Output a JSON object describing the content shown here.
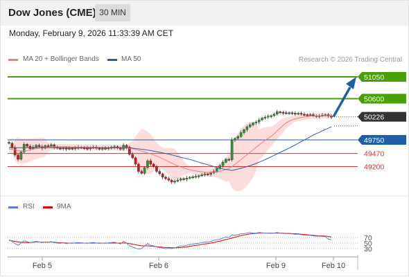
{
  "header": {
    "title": "Dow Jones (CME)",
    "timeframe": "30 MIN"
  },
  "datetime": "Monday, February 9, 2026 11:33:39 AM CET",
  "legend": {
    "ma20": "MA 20 + Bollinger Bands",
    "ma50": "MA 50",
    "rsi": "RSI",
    "ma9": "9MA"
  },
  "credit": "Research © 2026 Trading Central",
  "colors": {
    "ma20": "#f08080",
    "ma50": "#2d5fa0",
    "rsi": "#5b7fcf",
    "ma9": "#e00000",
    "target": "#4aa000",
    "pivot": "#1f5fa8",
    "support": "#d83030",
    "last": "#333333",
    "candle_up": "#2a9a2a",
    "candle_down": "#c02020",
    "band": "#fdd6d6"
  },
  "chart_data": [
    {
      "type": "candlestick",
      "title": "Dow Jones (CME)",
      "timeframe": "30 MIN",
      "x_ticks": [
        "Feb 5",
        "Feb 6",
        "Feb 9",
        "Feb 10"
      ],
      "ylim": [
        48900,
        51200
      ],
      "grid": false,
      "levels": [
        {
          "label": "51050",
          "value": 51050,
          "role": "resistance target"
        },
        {
          "label": "50600",
          "value": 50600,
          "role": "resistance target"
        },
        {
          "label": "50226",
          "value": 50226,
          "role": "last price"
        },
        {
          "label": "49750",
          "value": 49750,
          "role": "pivot"
        },
        {
          "label": "49470",
          "value": 49470,
          "role": "support"
        },
        {
          "label": "49200",
          "value": 49200,
          "role": "support"
        }
      ],
      "forecast_arrow": {
        "from": 50226,
        "to": 51050,
        "direction": "up"
      },
      "series": [
        {
          "name": "Dow Jones (CME)",
          "close": [
            49680,
            49590,
            49440,
            49350,
            49500,
            49660,
            49620,
            49570,
            49600,
            49640,
            49610,
            49580,
            49630,
            49620,
            49650,
            49600,
            49580,
            49570,
            49590,
            49560,
            49580,
            49570,
            49590,
            49600,
            49590,
            49580,
            49570,
            49590,
            49600,
            49580,
            49570,
            49580,
            49570,
            49590,
            49600,
            49610,
            49580,
            49560,
            49640,
            49600,
            49450,
            49380,
            49250,
            49100,
            49060,
            49180,
            49320,
            49250,
            49200,
            49100,
            49050,
            48980,
            48950,
            48920,
            48880,
            48900,
            48920,
            48950,
            48940,
            48960,
            48980,
            48990,
            49000,
            49010,
            49030,
            49050,
            49040,
            49070,
            49100,
            49160,
            49220,
            49290,
            49350,
            49340,
            49750,
            49780,
            49820,
            49900,
            49960,
            50020,
            50060,
            50100,
            50120,
            50160,
            50200,
            50220,
            50240,
            50250,
            50280,
            50330,
            50320,
            50310,
            50300,
            50310,
            50300,
            50290,
            50300,
            50280,
            50270,
            50260,
            50270,
            50250,
            50240,
            50250,
            50260,
            50270,
            50240,
            50226
          ]
        },
        {
          "name": "MA 20",
          "values": [
            49560,
            49552,
            49546,
            49528,
            49520,
            49520,
            49528,
            49542,
            49557,
            49570,
            49580,
            49590,
            49598,
            49600,
            49605,
            49608,
            49610,
            49610,
            49610,
            49608,
            49606,
            49604,
            49602,
            49600,
            49598,
            49596,
            49595,
            49595,
            49594,
            49593,
            49592,
            49590,
            49588,
            49588,
            49588,
            49588,
            49587,
            49586,
            49585,
            49584,
            49578,
            49566,
            49552,
            49536,
            49518,
            49500,
            49482,
            49462,
            49440,
            49416,
            49390,
            49362,
            49332,
            49300,
            49270,
            49240,
            49214,
            49190,
            49168,
            49150,
            49136,
            49122,
            49110,
            49100,
            49092,
            49086,
            49082,
            49080,
            49084,
            49092,
            49100,
            49120,
            49138,
            49160,
            49200,
            49246,
            49294,
            49344,
            49394,
            49444,
            49494,
            49544,
            49596,
            49646,
            49694,
            49740,
            49782,
            49822,
            49872,
            49936,
            49992,
            50050,
            50102,
            50136,
            50164,
            50186,
            50200,
            50212,
            50223,
            50232,
            50238,
            50242,
            50244,
            50246,
            50248,
            50248,
            50248,
            50248
          ]
        },
        {
          "name": "MA 50",
          "values": [
            49590,
            49590,
            49590,
            49590,
            49590,
            49590,
            49590,
            49590,
            49590,
            49590,
            49590,
            49590,
            49590,
            49590,
            49590,
            49590,
            49590,
            49590,
            49590,
            49590,
            49590,
            49590,
            49590,
            49590,
            49590,
            49590,
            49590,
            49590,
            49590,
            49590,
            49590,
            49590,
            49590,
            49590,
            49590,
            49590,
            49590,
            49590,
            49590,
            49590,
            49588,
            49580,
            49572,
            49564,
            49556,
            49548,
            49540,
            49530,
            49518,
            49506,
            49494,
            49482,
            49470,
            49456,
            49440,
            49424,
            49408,
            49392,
            49376,
            49362,
            49346,
            49330,
            49310,
            49290,
            49272,
            49254,
            49236,
            49218,
            49200,
            49180,
            49164,
            49150,
            49140,
            49130,
            49120,
            49134,
            49148,
            49164,
            49180,
            49200,
            49220,
            49242,
            49264,
            49290,
            49316,
            49344,
            49372,
            49402,
            49432,
            49462,
            49492,
            49522,
            49552,
            49582,
            49614,
            49646,
            49680,
            49716,
            49748,
            49780,
            49816,
            49850,
            49880,
            49904,
            49938,
            49966,
            49990,
            50020
          ]
        },
        {
          "name": "RSI",
          "values": [
            62,
            56,
            48,
            42,
            50,
            58,
            55,
            52,
            54,
            56,
            54,
            52,
            54,
            53,
            55,
            52,
            50,
            49,
            51,
            48,
            50,
            49,
            51,
            52,
            51,
            50,
            49,
            51,
            52,
            50,
            49,
            50,
            49,
            51,
            52,
            53,
            50,
            47,
            56,
            50,
            40,
            36,
            32,
            28,
            30,
            40,
            48,
            42,
            40,
            36,
            34,
            32,
            30,
            31,
            30,
            33,
            36,
            40,
            39,
            42,
            45,
            46,
            48,
            49,
            52,
            54,
            53,
            56,
            60,
            62,
            64,
            68,
            72,
            70,
            80,
            78,
            80,
            84,
            84,
            86,
            88,
            86,
            86,
            88,
            87,
            86,
            86,
            85,
            86,
            88,
            86,
            85,
            84,
            84,
            83,
            82,
            82,
            80,
            79,
            78,
            78,
            76,
            75,
            75,
            74,
            73,
            64,
            62
          ]
        },
        {
          "name": "9MA",
          "values": [
            60,
            58,
            56,
            54,
            53,
            52,
            52,
            52,
            53,
            54,
            54,
            53,
            53,
            53,
            54,
            53,
            52,
            51,
            51,
            50,
            50,
            50,
            50,
            50,
            50,
            50,
            50,
            50,
            50,
            50,
            50,
            50,
            50,
            50,
            50,
            50,
            50,
            50,
            50,
            50,
            48,
            46,
            44,
            42,
            40,
            40,
            40,
            39,
            38,
            37,
            36,
            35,
            34,
            34,
            33,
            33,
            33,
            34,
            35,
            36,
            38,
            40,
            42,
            43,
            45,
            47,
            48,
            50,
            52,
            55,
            57,
            60,
            63,
            65,
            68,
            71,
            74,
            77,
            79,
            81,
            83,
            84,
            85,
            86,
            86,
            86,
            86,
            86,
            86,
            86,
            86,
            86,
            85,
            85,
            84,
            84,
            83,
            82,
            81,
            80,
            79,
            78,
            77,
            76,
            76,
            75,
            74,
            72
          ]
        }
      ],
      "rsi_levels": [
        70,
        50,
        30
      ]
    }
  ]
}
